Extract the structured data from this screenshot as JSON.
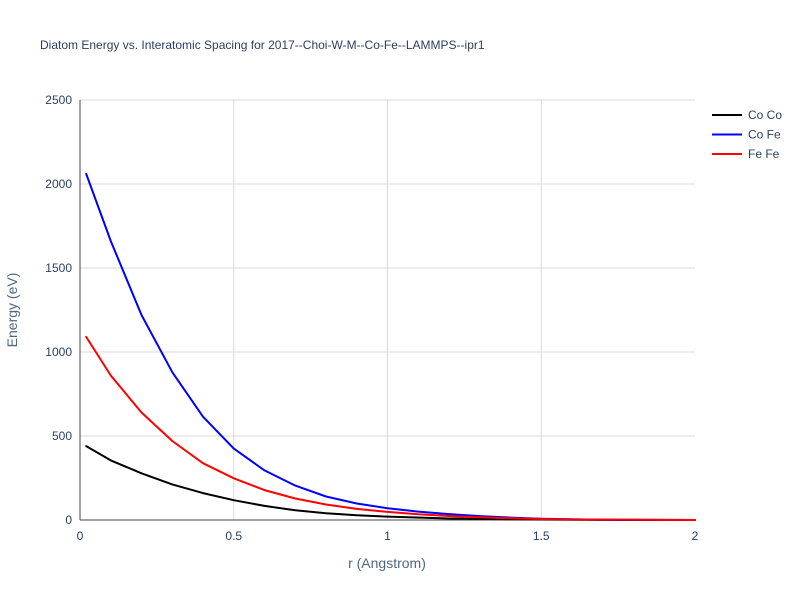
{
  "chart_data": {
    "type": "line",
    "title": "Diatom Energy vs. Interatomic Spacing for 2017--Choi-W-M--Co-Fe--LAMMPS--ipr1",
    "xlabel": "r (Angstrom)",
    "ylabel": "Energy (eV)",
    "xlim": [
      0,
      2
    ],
    "ylim": [
      0,
      2500
    ],
    "xticks": [
      0,
      0.5,
      1,
      1.5,
      2
    ],
    "xtick_labels": [
      "0",
      "0.5",
      "1",
      "1.5",
      "2"
    ],
    "yticks": [
      0,
      500,
      1000,
      1500,
      2000,
      2500
    ],
    "ytick_labels": [
      "0",
      "500",
      "1000",
      "1500",
      "2000",
      "2500"
    ],
    "grid": true,
    "legend_position": "top-right",
    "series": [
      {
        "name": "Co Co",
        "color": "#000000",
        "x": [
          0.02,
          0.1,
          0.2,
          0.3,
          0.4,
          0.5,
          0.6,
          0.7,
          0.8,
          0.9,
          1.0,
          1.2,
          1.4,
          1.6,
          1.8,
          2.0
        ],
        "y": [
          440,
          355,
          278,
          212,
          160,
          118,
          84,
          58,
          40,
          28,
          20,
          9,
          4,
          1,
          0,
          0
        ]
      },
      {
        "name": "Co Fe",
        "color": "#0000ff",
        "x": [
          0.02,
          0.1,
          0.2,
          0.3,
          0.4,
          0.5,
          0.6,
          0.7,
          0.8,
          0.9,
          1.0,
          1.1,
          1.2,
          1.3,
          1.4,
          1.5,
          1.6,
          1.7,
          1.8,
          2.0
        ],
        "y": [
          2060,
          1660,
          1220,
          880,
          615,
          425,
          295,
          205,
          140,
          98,
          70,
          50,
          35,
          23,
          14,
          8,
          4,
          2,
          1,
          0
        ]
      },
      {
        "name": "Fe Fe",
        "color": "#ff0000",
        "x": [
          0.02,
          0.1,
          0.2,
          0.3,
          0.4,
          0.5,
          0.6,
          0.7,
          0.8,
          0.9,
          1.0,
          1.1,
          1.2,
          1.3,
          1.4,
          1.5,
          1.6,
          1.8,
          2.0
        ],
        "y": [
          1090,
          860,
          640,
          470,
          338,
          248,
          178,
          128,
          92,
          66,
          48,
          34,
          24,
          16,
          10,
          6,
          3,
          1,
          0
        ]
      }
    ]
  }
}
